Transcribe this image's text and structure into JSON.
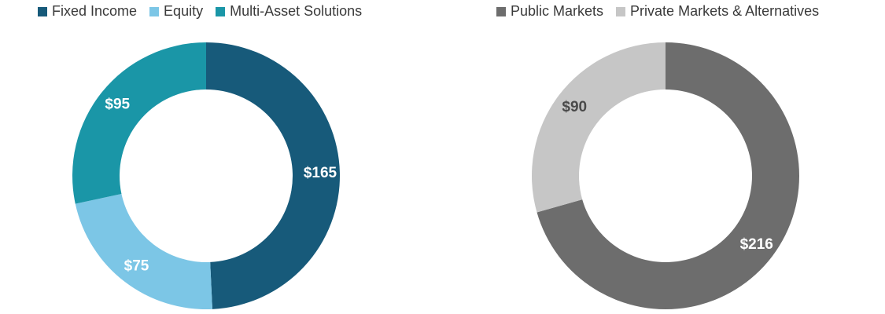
{
  "chart_data": [
    {
      "type": "pie",
      "title": "",
      "legend_position": "top",
      "categories": [
        "Fixed Income",
        "Equity",
        "Multi-Asset Solutions"
      ],
      "values": [
        165,
        75,
        95
      ],
      "labels": [
        "$165",
        "$75",
        "$95"
      ],
      "colors": [
        "#175a7a",
        "#7cc6e6",
        "#1a96a7"
      ],
      "label_colors": [
        "#ffffff",
        "#ffffff",
        "#ffffff"
      ]
    },
    {
      "type": "pie",
      "title": "",
      "legend_position": "top",
      "categories": [
        "Public Markets",
        "Private Markets & Alternatives"
      ],
      "values": [
        216,
        90
      ],
      "labels": [
        "$216",
        "$90"
      ],
      "colors": [
        "#6d6d6d",
        "#c6c6c6"
      ],
      "label_colors": [
        "#ffffff",
        "#4a4a4a"
      ]
    }
  ]
}
